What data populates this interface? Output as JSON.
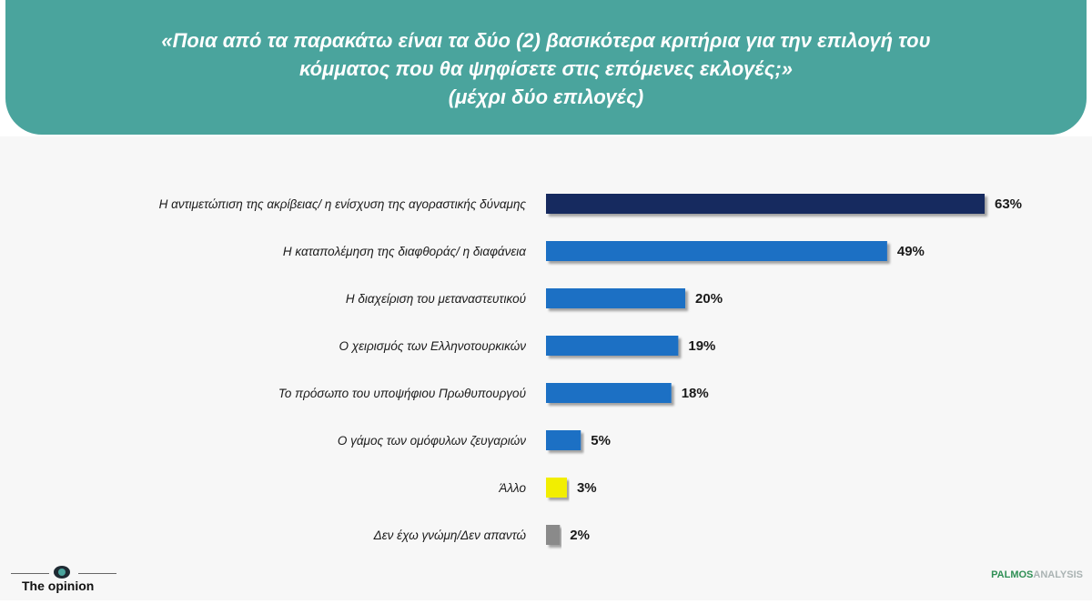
{
  "title": {
    "line1": "«Ποια από τα παρακάτω είναι τα δύο (2) βασικότερα κριτήρια για την επιλογή του",
    "line2": "κόμματος που θα ψηφίσετε στις επόμενες εκλογές;»",
    "line3": "(μέχρι δύο επιλογές)"
  },
  "colors": {
    "header": "#4aa49d",
    "bar_top": "#122a5e",
    "bar_main": "#1f6fc4",
    "bar_other": "#f2ee00",
    "bar_dk": "#8a8a8a"
  },
  "chart_data": {
    "type": "bar",
    "orientation": "horizontal",
    "categories": [
      "Η αντιμετώπιση της ακρίβειας/ η ενίσχυση της αγοραστικής δύναμης",
      "Η καταπολέμηση της διαφθοράς/ η διαφάνεια",
      "Η διαχείριση του μεταναστευτικού",
      "Ο χειρισμός των Ελληνοτουρκικών",
      "Το πρόσωπο του υποψήφιου Πρωθυπουργού",
      "Ο γάμος των ομόφυλων ζευγαριών",
      "Άλλο",
      "Δεν έχω γνώμη/Δεν απαντώ"
    ],
    "values": [
      63,
      49,
      20,
      19,
      18,
      5,
      3,
      2
    ],
    "value_labels": [
      "63%",
      "49%",
      "20%",
      "19%",
      "18%",
      "5%",
      "3%",
      "2%"
    ],
    "bar_colors": [
      "#122a5e",
      "#1f6fc4",
      "#1f6fc4",
      "#1f6fc4",
      "#1f6fc4",
      "#1f6fc4",
      "#f2ee00",
      "#8a8a8a"
    ],
    "xlim": [
      0,
      63
    ],
    "grid": false,
    "legend": false
  },
  "logos": {
    "left_text": "The opinion",
    "right_text_a": "PALMOS",
    "right_text_b": "ANALYSIS"
  }
}
